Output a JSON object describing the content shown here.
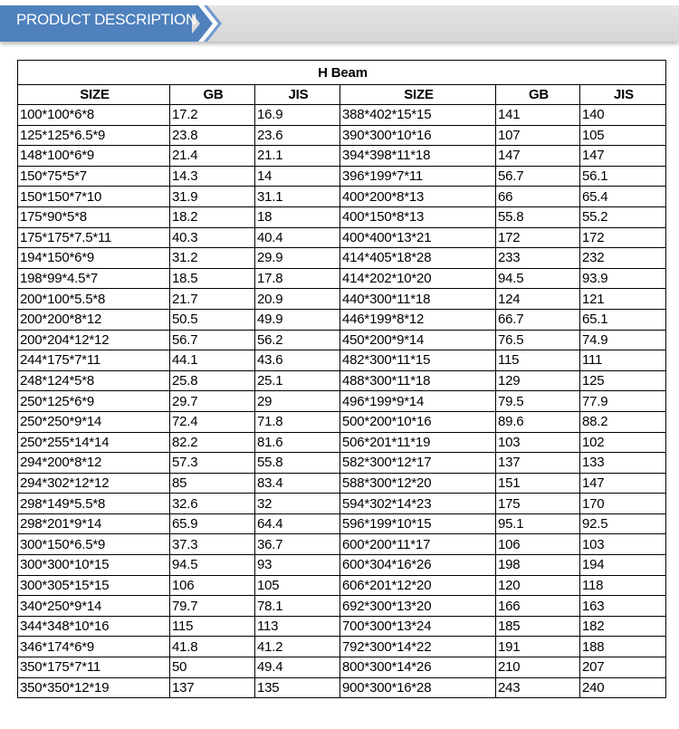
{
  "banner": {
    "title": "PRODUCT DESCRIPTION",
    "accent_color": "#4f81bd"
  },
  "table": {
    "title": "H Beam",
    "headers": [
      "SIZE",
      "GB",
      "JIS",
      "SIZE",
      "GB",
      "JIS"
    ],
    "rows": [
      [
        "100*100*6*8",
        "17.2",
        "16.9",
        "388*402*15*15",
        "141",
        "140"
      ],
      [
        "125*125*6.5*9",
        "23.8",
        "23.6",
        "390*300*10*16",
        "107",
        "105"
      ],
      [
        "148*100*6*9",
        "21.4",
        "21.1",
        "394*398*11*18",
        "147",
        "147"
      ],
      [
        "150*75*5*7",
        "14.3",
        "14",
        "396*199*7*11",
        "56.7",
        "56.1"
      ],
      [
        "150*150*7*10",
        "31.9",
        "31.1",
        "400*200*8*13",
        "66",
        "65.4"
      ],
      [
        "175*90*5*8",
        "18.2",
        "18",
        "400*150*8*13",
        "55.8",
        "55.2"
      ],
      [
        "175*175*7.5*11",
        "40.3",
        "40.4",
        "400*400*13*21",
        "172",
        "172"
      ],
      [
        "194*150*6*9",
        "31.2",
        "29.9",
        "414*405*18*28",
        "233",
        "232"
      ],
      [
        "198*99*4.5*7",
        "18.5",
        "17.8",
        "414*202*10*20",
        "94.5",
        "93.9"
      ],
      [
        "200*100*5.5*8",
        "21.7",
        "20.9",
        "440*300*11*18",
        "124",
        "121"
      ],
      [
        "200*200*8*12",
        "50.5",
        "49.9",
        "446*199*8*12",
        "66.7",
        "65.1"
      ],
      [
        "200*204*12*12",
        "56.7",
        "56.2",
        "450*200*9*14",
        "76.5",
        "74.9"
      ],
      [
        "244*175*7*11",
        "44.1",
        "43.6",
        "482*300*11*15",
        "115",
        "111"
      ],
      [
        "248*124*5*8",
        "25.8",
        "25.1",
        "488*300*11*18",
        "129",
        "125"
      ],
      [
        "250*125*6*9",
        "29.7",
        "29",
        "496*199*9*14",
        "79.5",
        "77.9"
      ],
      [
        "250*250*9*14",
        "72.4",
        "71.8",
        "500*200*10*16",
        "89.6",
        "88.2"
      ],
      [
        "250*255*14*14",
        "82.2",
        "81.6",
        "506*201*11*19",
        "103",
        "102"
      ],
      [
        "294*200*8*12",
        "57.3",
        "55.8",
        "582*300*12*17",
        "137",
        "133"
      ],
      [
        "294*302*12*12",
        "85",
        "83.4",
        "588*300*12*20",
        "151",
        "147"
      ],
      [
        "298*149*5.5*8",
        "32.6",
        "32",
        "594*302*14*23",
        "175",
        "170"
      ],
      [
        "298*201*9*14",
        "65.9",
        "64.4",
        "596*199*10*15",
        "95.1",
        "92.5"
      ],
      [
        "300*150*6.5*9",
        "37.3",
        "36.7",
        "600*200*11*17",
        "106",
        "103"
      ],
      [
        "300*300*10*15",
        "94.5",
        "93",
        "600*304*16*26",
        "198",
        "194"
      ],
      [
        "300*305*15*15",
        "106",
        "105",
        "606*201*12*20",
        "120",
        "118"
      ],
      [
        "340*250*9*14",
        "79.7",
        "78.1",
        "692*300*13*20",
        "166",
        "163"
      ],
      [
        "344*348*10*16",
        "115",
        "113",
        "700*300*13*24",
        "185",
        "182"
      ],
      [
        "346*174*6*9",
        "41.8",
        "41.2",
        "792*300*14*22",
        "191",
        "188"
      ],
      [
        "350*175*7*11",
        "50",
        "49.4",
        "800*300*14*26",
        "210",
        "207"
      ],
      [
        "350*350*12*19",
        "137",
        "135",
        "900*300*16*28",
        "243",
        "240"
      ]
    ]
  }
}
